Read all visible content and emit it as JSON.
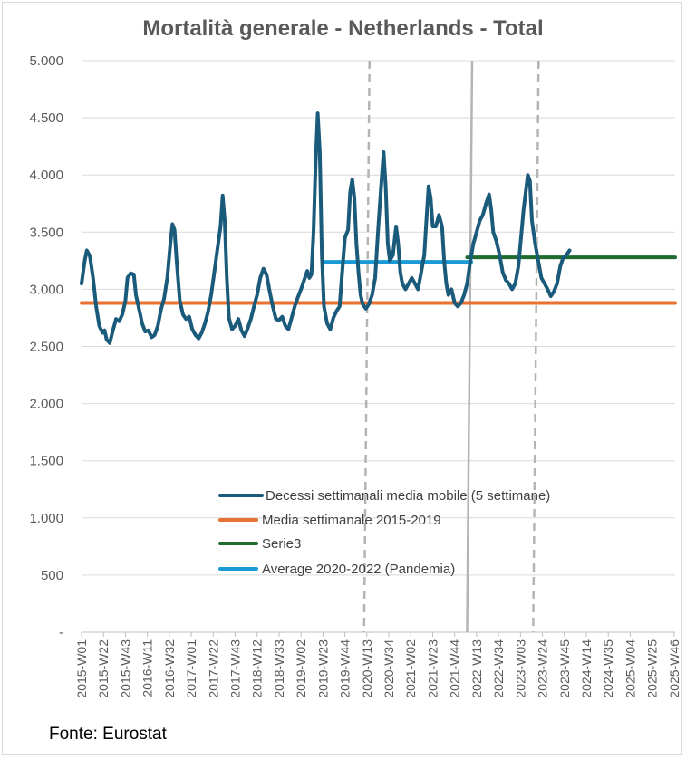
{
  "chart_data": {
    "type": "line",
    "title": "Mortalità generale - Netherlands - Total",
    "source": "Fonte: Eurostat",
    "ylim": [
      0,
      5000
    ],
    "y_ticks": [
      {
        "value": 0,
        "label": "-"
      },
      {
        "value": 500,
        "label": "500"
      },
      {
        "value": 1000,
        "label": "1.000"
      },
      {
        "value": 1500,
        "label": "1.500"
      },
      {
        "value": 2000,
        "label": "2.000"
      },
      {
        "value": 2500,
        "label": "2.500"
      },
      {
        "value": 3000,
        "label": "3.000"
      },
      {
        "value": 3500,
        "label": "3.500"
      },
      {
        "value": 4000,
        "label": "4.000"
      },
      {
        "value": 4500,
        "label": "4.500"
      },
      {
        "value": 5000,
        "label": "5.000"
      }
    ],
    "x_range": [
      0,
      568
    ],
    "x_ticks": [
      {
        "index": 0,
        "label": "2015-W01"
      },
      {
        "index": 21,
        "label": "2015-W22"
      },
      {
        "index": 42,
        "label": "2015-W43"
      },
      {
        "index": 63,
        "label": "2016-W11"
      },
      {
        "index": 84,
        "label": "2016-W32"
      },
      {
        "index": 105,
        "label": "2017-W01"
      },
      {
        "index": 126,
        "label": "2017-W22"
      },
      {
        "index": 147,
        "label": "2017-W43"
      },
      {
        "index": 168,
        "label": "2018-W12"
      },
      {
        "index": 189,
        "label": "2018-W33"
      },
      {
        "index": 210,
        "label": "2019-W02"
      },
      {
        "index": 231,
        "label": "2019-W23"
      },
      {
        "index": 252,
        "label": "2019-W44"
      },
      {
        "index": 273,
        "label": "2020-W13"
      },
      {
        "index": 294,
        "label": "2020-W34"
      },
      {
        "index": 315,
        "label": "2021-W02"
      },
      {
        "index": 336,
        "label": "2021-W23"
      },
      {
        "index": 357,
        "label": "2021-W44"
      },
      {
        "index": 378,
        "label": "2022-W13"
      },
      {
        "index": 399,
        "label": "2022-W34"
      },
      {
        "index": 420,
        "label": "2023-W03"
      },
      {
        "index": 441,
        "label": "2023-W24"
      },
      {
        "index": 462,
        "label": "2023-W45"
      },
      {
        "index": 483,
        "label": "2024-W14"
      },
      {
        "index": 504,
        "label": "2024-W35"
      },
      {
        "index": 525,
        "label": "2025-W04"
      },
      {
        "index": 546,
        "label": "2025-W25"
      },
      {
        "index": 567,
        "label": "2025-W46"
      }
    ],
    "series": [
      {
        "name": "Decessi settimanali media mobile (5 settimane)",
        "color": "#1a5a7a",
        "points": [
          [
            0,
            3050
          ],
          [
            3,
            3250
          ],
          [
            5,
            3340
          ],
          [
            8,
            3290
          ],
          [
            11,
            3100
          ],
          [
            14,
            2850
          ],
          [
            17,
            2680
          ],
          [
            20,
            2620
          ],
          [
            22,
            2640
          ],
          [
            24,
            2560
          ],
          [
            27,
            2530
          ],
          [
            30,
            2640
          ],
          [
            33,
            2740
          ],
          [
            36,
            2720
          ],
          [
            39,
            2780
          ],
          [
            42,
            2900
          ],
          [
            44,
            3100
          ],
          [
            47,
            3140
          ],
          [
            50,
            3130
          ],
          [
            52,
            2950
          ],
          [
            55,
            2830
          ],
          [
            58,
            2700
          ],
          [
            61,
            2630
          ],
          [
            64,
            2640
          ],
          [
            67,
            2580
          ],
          [
            70,
            2600
          ],
          [
            73,
            2680
          ],
          [
            76,
            2820
          ],
          [
            79,
            2920
          ],
          [
            82,
            3100
          ],
          [
            85,
            3400
          ],
          [
            87,
            3570
          ],
          [
            89,
            3520
          ],
          [
            91,
            3250
          ],
          [
            94,
            2900
          ],
          [
            97,
            2780
          ],
          [
            100,
            2740
          ],
          [
            103,
            2760
          ],
          [
            106,
            2650
          ],
          [
            109,
            2600
          ],
          [
            112,
            2570
          ],
          [
            115,
            2620
          ],
          [
            118,
            2700
          ],
          [
            121,
            2800
          ],
          [
            124,
            2950
          ],
          [
            127,
            3150
          ],
          [
            130,
            3350
          ],
          [
            133,
            3550
          ],
          [
            135,
            3820
          ],
          [
            137,
            3600
          ],
          [
            139,
            3100
          ],
          [
            141,
            2750
          ],
          [
            144,
            2650
          ],
          [
            147,
            2680
          ],
          [
            150,
            2740
          ],
          [
            153,
            2640
          ],
          [
            156,
            2590
          ],
          [
            159,
            2660
          ],
          [
            162,
            2740
          ],
          [
            165,
            2850
          ],
          [
            168,
            2950
          ],
          [
            171,
            3100
          ],
          [
            174,
            3180
          ],
          [
            177,
            3130
          ],
          [
            180,
            2980
          ],
          [
            183,
            2850
          ],
          [
            186,
            2740
          ],
          [
            189,
            2730
          ],
          [
            192,
            2760
          ],
          [
            195,
            2680
          ],
          [
            198,
            2650
          ],
          [
            201,
            2750
          ],
          [
            204,
            2850
          ],
          [
            207,
            2930
          ],
          [
            210,
            3000
          ],
          [
            213,
            3080
          ],
          [
            216,
            3160
          ],
          [
            218,
            3100
          ],
          [
            220,
            3130
          ],
          [
            222,
            3500
          ],
          [
            224,
            4100
          ],
          [
            226,
            4540
          ],
          [
            228,
            4200
          ],
          [
            230,
            3300
          ],
          [
            232,
            2850
          ],
          [
            235,
            2700
          ],
          [
            238,
            2650
          ],
          [
            241,
            2750
          ],
          [
            244,
            2810
          ],
          [
            247,
            2850
          ],
          [
            249,
            3100
          ],
          [
            252,
            3450
          ],
          [
            255,
            3520
          ],
          [
            257,
            3850
          ],
          [
            259,
            3960
          ],
          [
            261,
            3800
          ],
          [
            263,
            3400
          ],
          [
            265,
            3150
          ],
          [
            267,
            2950
          ],
          [
            269,
            2870
          ],
          [
            272,
            2830
          ],
          [
            275,
            2870
          ],
          [
            278,
            2950
          ],
          [
            281,
            3100
          ],
          [
            284,
            3550
          ],
          [
            287,
            3950
          ],
          [
            289,
            4200
          ],
          [
            291,
            3900
          ],
          [
            293,
            3400
          ],
          [
            295,
            3250
          ],
          [
            298,
            3300
          ],
          [
            301,
            3550
          ],
          [
            303,
            3400
          ],
          [
            305,
            3150
          ],
          [
            307,
            3050
          ],
          [
            310,
            3000
          ],
          [
            313,
            3050
          ],
          [
            316,
            3100
          ],
          [
            319,
            3050
          ],
          [
            322,
            3000
          ],
          [
            325,
            3150
          ],
          [
            328,
            3300
          ],
          [
            330,
            3600
          ],
          [
            332,
            3900
          ],
          [
            334,
            3800
          ],
          [
            336,
            3550
          ],
          [
            339,
            3550
          ],
          [
            342,
            3650
          ],
          [
            345,
            3550
          ],
          [
            347,
            3250
          ],
          [
            349,
            3050
          ],
          [
            351,
            2950
          ],
          [
            354,
            3000
          ],
          [
            357,
            2880
          ],
          [
            360,
            2850
          ],
          [
            363,
            2880
          ],
          [
            366,
            2950
          ],
          [
            369,
            3050
          ],
          [
            372,
            3250
          ],
          [
            375,
            3400
          ],
          [
            378,
            3500
          ],
          [
            381,
            3600
          ],
          [
            384,
            3650
          ],
          [
            387,
            3750
          ],
          [
            390,
            3830
          ],
          [
            392,
            3700
          ],
          [
            394,
            3500
          ],
          [
            397,
            3420
          ],
          [
            400,
            3300
          ],
          [
            403,
            3150
          ],
          [
            406,
            3080
          ],
          [
            409,
            3050
          ],
          [
            412,
            3000
          ],
          [
            415,
            3050
          ],
          [
            418,
            3200
          ],
          [
            421,
            3500
          ],
          [
            423,
            3700
          ],
          [
            425,
            3850
          ],
          [
            427,
            4000
          ],
          [
            429,
            3950
          ],
          [
            431,
            3600
          ],
          [
            434,
            3400
          ],
          [
            437,
            3250
          ],
          [
            440,
            3100
          ],
          [
            443,
            3050
          ],
          [
            446,
            3000
          ],
          [
            449,
            2940
          ],
          [
            452,
            2980
          ],
          [
            455,
            3050
          ],
          [
            458,
            3200
          ],
          [
            461,
            3280
          ],
          [
            464,
            3300
          ],
          [
            467,
            3340
          ]
        ]
      },
      {
        "name": "Media settimanale 2015-2019",
        "color": "#e97132",
        "points": [
          [
            0,
            2880
          ],
          [
            568,
            2880
          ]
        ]
      },
      {
        "name": "Serie3",
        "color": "#1f6b2e",
        "points": [
          [
            369,
            3280
          ],
          [
            568,
            3280
          ]
        ]
      },
      {
        "name": "Average 2020-2022 (Pandemia)",
        "color": "#1a9ad6",
        "points": [
          [
            233,
            3240
          ],
          [
            373,
            3240
          ]
        ]
      }
    ],
    "legend_location": "lower-center"
  }
}
